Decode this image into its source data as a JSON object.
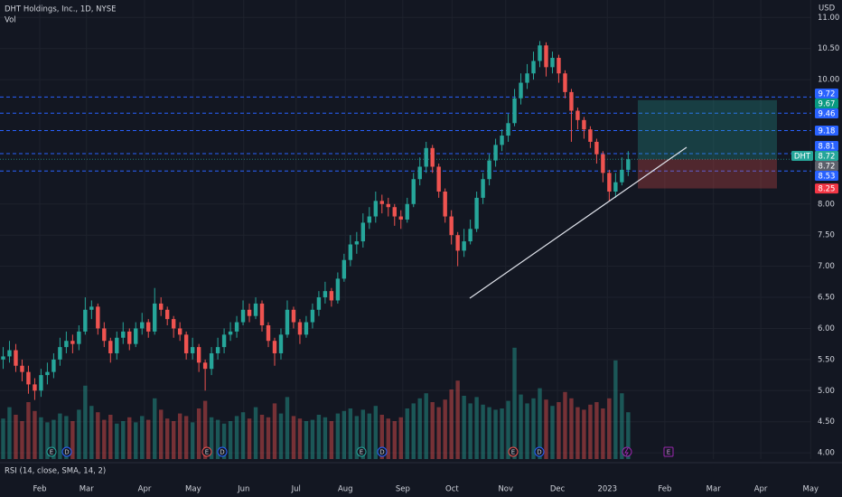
{
  "chart_data": {
    "type": "candlestick",
    "title": "DHT Holdings, Inc., 1D, NYSE",
    "volume_label": "Vol",
    "currency": "USD",
    "indicator_label": "RSI (14, close, SMA, 14, 2)",
    "up_color": "#26a69a",
    "down_color": "#ef5350",
    "grid": true,
    "open": [
      5.5,
      5.55,
      5.65,
      5.4,
      5.3,
      5.1,
      5.0,
      5.25,
      5.3,
      5.5,
      5.7,
      5.8,
      5.75,
      5.95,
      6.3,
      6.35,
      6.0,
      5.8,
      5.6,
      5.85,
      5.95,
      5.75,
      6.0,
      6.1,
      5.95,
      6.4,
      6.3,
      6.15,
      6.0,
      5.9,
      5.6,
      5.7,
      5.45,
      5.35,
      5.6,
      5.7,
      5.9,
      5.95,
      6.1,
      6.3,
      6.2,
      6.4,
      6.05,
      5.8,
      5.6,
      5.9,
      6.3,
      6.1,
      5.9,
      6.1,
      6.3,
      6.5,
      6.6,
      6.45,
      6.8,
      7.1,
      7.35,
      7.4,
      7.7,
      7.8,
      8.05,
      8.0,
      7.95,
      7.8,
      7.75,
      8.0,
      8.4,
      8.6,
      8.9,
      8.6,
      8.2,
      7.8,
      7.5,
      7.25,
      7.4,
      7.6,
      8.1,
      8.4,
      8.7,
      8.95,
      9.1,
      9.3,
      9.7,
      9.95,
      10.1,
      10.3,
      10.55,
      10.2,
      10.35,
      10.1,
      9.8,
      9.5,
      9.35,
      9.2,
      9.0,
      8.8,
      8.5,
      8.2,
      8.35,
      8.55
    ],
    "high": [
      5.7,
      5.8,
      5.75,
      5.5,
      5.4,
      5.2,
      5.35,
      5.45,
      5.6,
      5.85,
      5.95,
      5.9,
      6.05,
      6.5,
      6.45,
      6.4,
      6.1,
      5.85,
      5.95,
      6.1,
      6.0,
      6.1,
      6.25,
      6.15,
      6.65,
      6.5,
      6.35,
      6.2,
      6.1,
      5.95,
      5.85,
      5.75,
      5.5,
      5.7,
      5.85,
      6.0,
      6.1,
      6.2,
      6.45,
      6.4,
      6.5,
      6.45,
      6.1,
      5.85,
      6.0,
      6.45,
      6.35,
      6.15,
      6.2,
      6.4,
      6.6,
      6.75,
      6.65,
      6.9,
      7.2,
      7.5,
      7.55,
      7.85,
      7.95,
      8.2,
      8.15,
      8.1,
      8.0,
      7.9,
      8.1,
      8.5,
      8.75,
      9.0,
      8.95,
      8.65,
      8.25,
      7.9,
      7.55,
      7.6,
      7.75,
      8.2,
      8.5,
      8.8,
      9.05,
      9.2,
      9.45,
      9.85,
      10.1,
      10.25,
      10.45,
      10.62,
      10.6,
      10.45,
      10.4,
      10.15,
      9.85,
      9.55,
      9.4,
      9.25,
      9.05,
      8.85,
      8.55,
      8.5,
      8.75,
      8.85
    ],
    "low": [
      5.35,
      5.45,
      5.3,
      5.15,
      4.95,
      4.85,
      4.9,
      5.1,
      5.2,
      5.4,
      5.6,
      5.6,
      5.65,
      5.9,
      6.15,
      5.9,
      5.7,
      5.45,
      5.5,
      5.75,
      5.65,
      5.7,
      5.9,
      5.85,
      5.9,
      6.2,
      6.05,
      5.85,
      5.8,
      5.5,
      5.5,
      5.3,
      5.0,
      5.25,
      5.5,
      5.6,
      5.8,
      5.85,
      6.05,
      6.1,
      6.15,
      5.95,
      5.7,
      5.4,
      5.5,
      5.85,
      6.0,
      5.75,
      5.85,
      6.0,
      6.2,
      6.4,
      6.35,
      6.4,
      6.75,
      7.0,
      7.2,
      7.3,
      7.6,
      7.7,
      7.85,
      7.8,
      7.65,
      7.6,
      7.7,
      7.95,
      8.3,
      8.5,
      8.5,
      8.1,
      7.7,
      7.35,
      7.0,
      7.15,
      7.35,
      7.55,
      8.0,
      8.3,
      8.6,
      8.85,
      9.0,
      9.25,
      9.6,
      9.85,
      10.0,
      10.2,
      10.05,
      10.1,
      9.95,
      9.7,
      9.0,
      9.2,
      9.05,
      8.9,
      8.65,
      8.35,
      8.05,
      8.1,
      8.3,
      8.45
    ],
    "close": [
      5.55,
      5.65,
      5.4,
      5.3,
      5.1,
      5.0,
      5.25,
      5.3,
      5.5,
      5.7,
      5.8,
      5.75,
      5.95,
      6.3,
      6.35,
      6.0,
      5.8,
      5.6,
      5.85,
      5.95,
      5.75,
      6.0,
      6.1,
      5.95,
      6.4,
      6.3,
      6.15,
      6.0,
      5.9,
      5.6,
      5.7,
      5.45,
      5.35,
      5.6,
      5.7,
      5.9,
      5.95,
      6.1,
      6.3,
      6.2,
      6.4,
      6.05,
      5.8,
      5.6,
      5.9,
      6.3,
      6.1,
      5.9,
      6.1,
      6.3,
      6.5,
      6.6,
      6.45,
      6.8,
      7.1,
      7.35,
      7.4,
      7.7,
      7.8,
      8.05,
      8.0,
      7.95,
      7.8,
      7.75,
      8.0,
      8.4,
      8.6,
      8.9,
      8.6,
      8.2,
      7.8,
      7.5,
      7.25,
      7.4,
      7.6,
      8.1,
      8.4,
      8.7,
      8.95,
      9.1,
      9.3,
      9.7,
      9.95,
      10.1,
      10.3,
      10.55,
      10.2,
      10.35,
      10.1,
      9.8,
      9.5,
      9.35,
      9.2,
      9.0,
      8.8,
      8.5,
      8.2,
      8.35,
      8.55,
      8.72
    ],
    "volume": [
      3.2,
      4.1,
      3.5,
      3.0,
      4.5,
      3.8,
      3.3,
      2.9,
      3.1,
      3.6,
      3.4,
      3.0,
      3.9,
      5.8,
      4.2,
      3.7,
      3.1,
      3.5,
      2.8,
      3.0,
      3.3,
      2.9,
      3.4,
      3.1,
      4.8,
      3.9,
      3.2,
      3.0,
      3.6,
      3.4,
      2.9,
      4.0,
      4.6,
      3.3,
      3.1,
      2.8,
      3.0,
      3.4,
      3.7,
      3.2,
      4.1,
      3.5,
      3.3,
      4.4,
      3.6,
      4.9,
      3.4,
      3.2,
      3.0,
      3.1,
      3.5,
      3.3,
      3.0,
      3.6,
      3.8,
      4.0,
      3.4,
      3.9,
      3.6,
      4.2,
      3.5,
      3.2,
      3.0,
      3.3,
      4.0,
      4.4,
      4.8,
      5.2,
      4.5,
      4.1,
      4.7,
      5.5,
      6.2,
      5.0,
      4.4,
      4.9,
      4.3,
      4.1,
      3.9,
      4.0,
      4.6,
      8.8,
      5.1,
      4.4,
      4.8,
      5.6,
      4.7,
      4.2,
      4.5,
      5.3,
      4.8,
      4.1,
      3.9,
      4.3,
      4.5,
      4.0,
      4.8,
      7.8,
      5.2,
      3.7
    ],
    "volume_ylim": [
      0,
      10
    ],
    "xlim": [
      -0.5,
      128
    ],
    "xticks": [
      {
        "value": 5.8,
        "label": "Feb"
      },
      {
        "value": 13.2,
        "label": "Mar"
      },
      {
        "value": 22.4,
        "label": "Apr"
      },
      {
        "value": 30.1,
        "label": "May"
      },
      {
        "value": 38.1,
        "label": "Jun"
      },
      {
        "value": 46.4,
        "label": "Jul"
      },
      {
        "value": 54.2,
        "label": "Aug"
      },
      {
        "value": 63.3,
        "label": "Sep"
      },
      {
        "value": 71.1,
        "label": "Oct"
      },
      {
        "value": 79.6,
        "label": "Nov"
      },
      {
        "value": 87.8,
        "label": "Dec"
      },
      {
        "value": 95.7,
        "label": "2023"
      },
      {
        "value": 104.8,
        "label": "Feb"
      },
      {
        "value": 112.5,
        "label": "Mar"
      },
      {
        "value": 120,
        "label": "Apr"
      },
      {
        "value": 127.9,
        "label": "May"
      }
    ],
    "ylim": [
      3.9,
      11.28
    ],
    "yticks": [
      {
        "value": 11,
        "label": "11.00"
      },
      {
        "value": 10.5,
        "label": "10.50"
      },
      {
        "value": 10,
        "label": "10.00"
      },
      {
        "value": 8,
        "label": "8.00"
      },
      {
        "value": 7.5,
        "label": "7.50"
      },
      {
        "value": 7,
        "label": "7.00"
      },
      {
        "value": 6.5,
        "label": "6.50"
      },
      {
        "value": 6,
        "label": "6.00"
      },
      {
        "value": 5.5,
        "label": "5.50"
      },
      {
        "value": 5,
        "label": "5.00"
      },
      {
        "value": 4.5,
        "label": "4.50"
      },
      {
        "value": 4,
        "label": "4.00"
      }
    ],
    "levels": {
      "color": "#2962ff",
      "values": [
        9.72,
        9.46,
        9.18,
        8.81,
        8.53
      ]
    },
    "last_price": {
      "symbol": "DHT",
      "value": 8.72
    },
    "position": {
      "target": 9.67,
      "entry": 8.72,
      "stop": 8.25
    },
    "events": [
      "E",
      "D",
      "E",
      "D",
      "E",
      "D",
      "E",
      "D",
      "E"
    ]
  }
}
